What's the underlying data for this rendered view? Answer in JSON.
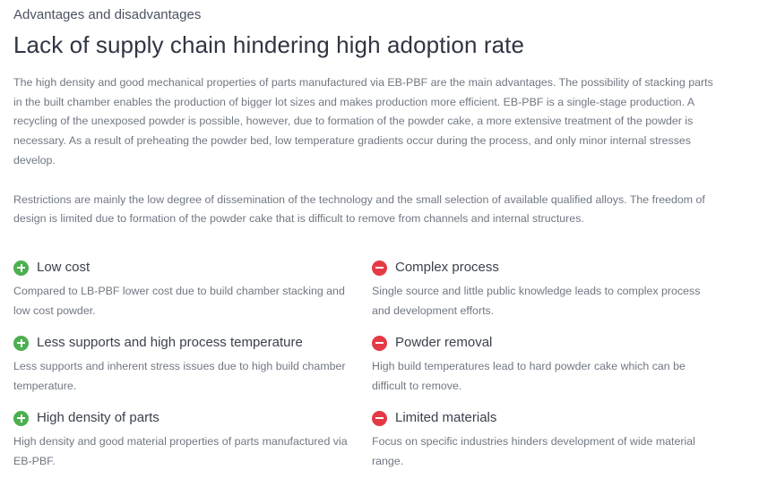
{
  "section": {
    "eyebrow": "Advantages and disadvantages",
    "headline": "Lack of supply chain hindering high adoption rate",
    "paragraphs": [
      "The high density and good mechanical properties of parts manufactured via EB-PBF are the main advantages. The possibility of stacking parts in the built chamber enables the production of bigger lot sizes and makes production more efficient. EB-PBF is a single-stage production. A recycling of the unexposed powder is possible, however, due to formation of the powder cake, a more extensive treatment of the powder is necessary. As a result of preheating the powder bed, low temperature gradients occur during the process, and only minor internal stresses develop.",
      "Restrictions are mainly the low degree of dissemination of the technology and the small selection of available qualified alloys. The freedom of design is limited due to formation of the powder cake that is difficult to remove from channels and internal structures."
    ]
  },
  "advantages": [
    {
      "icon": "plus-circle-icon",
      "title": "Low cost",
      "text": "Compared to LB-PBF lower cost due to build chamber stacking and low cost powder."
    },
    {
      "icon": "plus-circle-icon",
      "title": "Less supports and high process temperature",
      "text": "Less supports and inherent stress issues due to high build chamber temperature."
    },
    {
      "icon": "plus-circle-icon",
      "title": "High density of parts",
      "text": "High density and good material properties of parts manufactured via EB-PBF."
    }
  ],
  "disadvantages": [
    {
      "icon": "minus-circle-icon",
      "title": "Complex process",
      "text": "Single source and little public knowledge leads to complex process and development efforts."
    },
    {
      "icon": "minus-circle-icon",
      "title": "Powder removal",
      "text": "High build temperatures lead to hard powder cake which can be difficult to remove."
    },
    {
      "icon": "minus-circle-icon",
      "title": "Limited materials",
      "text": "Focus on specific industries hinders development of wide material range."
    }
  ],
  "colors": {
    "advantage_icon": "#4caf50",
    "disadvantage_icon": "#e53946",
    "headline": "#2f3542",
    "body_text": "#707782"
  }
}
